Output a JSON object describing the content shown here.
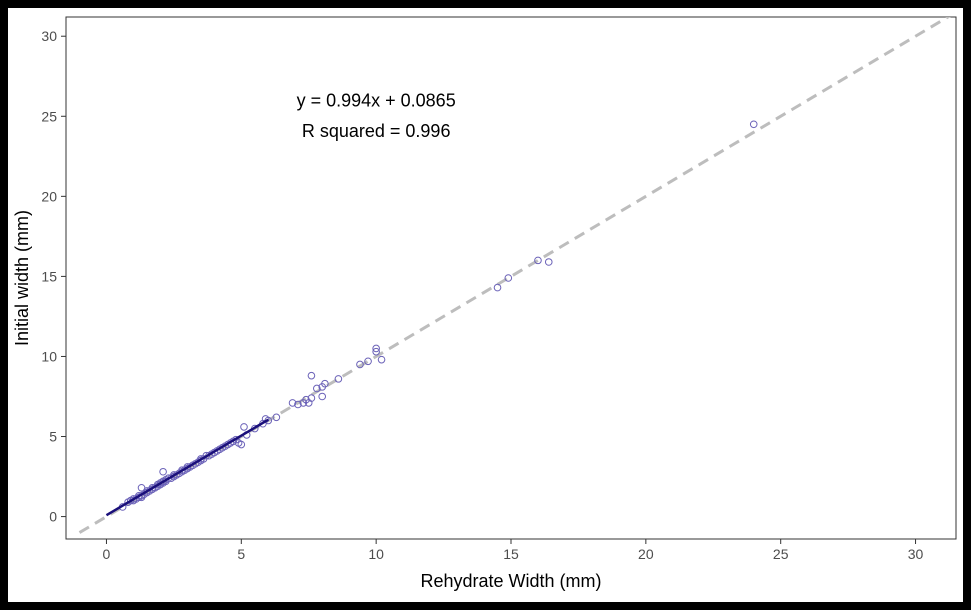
{
  "chart_data": {
    "type": "scatter",
    "title": "",
    "xlabel": "Rehydrate Width (mm)",
    "ylabel": "Initial width (mm)",
    "xlim": [
      -1.5,
      31.5
    ],
    "ylim": [
      -1.4,
      31.2
    ],
    "x_ticks": [
      0,
      5,
      10,
      15,
      20,
      25,
      30
    ],
    "y_ticks": [
      0,
      5,
      10,
      15,
      20,
      25,
      30
    ],
    "grid": false,
    "annotations": [
      "y = 0.994x + 0.0865",
      "R squared = 0.996"
    ],
    "identity_line": {
      "style": "dashed",
      "color": "#bdbdbd",
      "from": [
        -1.0,
        -1.0
      ],
      "to": [
        31.5,
        31.5
      ]
    },
    "fit_line": {
      "slope": 0.994,
      "intercept": 0.0865,
      "x_range": [
        0.0,
        6.0
      ],
      "color": "#1a0f7a"
    },
    "point_color": "#6b62b8",
    "points": {
      "x": [
        0.6,
        0.8,
        0.9,
        1.0,
        1.0,
        1.1,
        1.2,
        1.2,
        1.3,
        1.3,
        1.4,
        1.5,
        1.5,
        1.6,
        1.7,
        1.7,
        1.8,
        1.9,
        1.9,
        2.0,
        2.0,
        2.1,
        2.1,
        2.2,
        2.2,
        2.3,
        2.4,
        2.5,
        2.5,
        2.6,
        2.7,
        2.8,
        2.8,
        2.9,
        3.0,
        3.0,
        3.1,
        3.2,
        3.3,
        3.4,
        3.5,
        3.5,
        3.6,
        3.7,
        3.8,
        3.9,
        4.0,
        4.1,
        4.2,
        4.3,
        4.4,
        4.5,
        4.6,
        4.7,
        4.8,
        5.0,
        5.1,
        5.2,
        5.5,
        5.8,
        5.9,
        6.0,
        6.3,
        6.9,
        7.1,
        7.3,
        7.4,
        7.5,
        7.6,
        7.6,
        7.8,
        8.0,
        8.0,
        8.1,
        8.6,
        9.4,
        9.7,
        10.0,
        10.0,
        10.2,
        14.5,
        14.9,
        16.0,
        16.4,
        24.0,
        2.1,
        1.3,
        4.9
      ],
      "y": [
        0.6,
        0.9,
        1.0,
        1.0,
        1.1,
        1.1,
        1.2,
        1.3,
        1.8,
        1.3,
        1.4,
        1.5,
        1.6,
        1.6,
        1.7,
        1.8,
        1.8,
        1.9,
        2.0,
        2.0,
        2.1,
        2.1,
        2.2,
        2.2,
        2.3,
        2.4,
        2.4,
        2.5,
        2.6,
        2.6,
        2.7,
        2.8,
        2.9,
        2.9,
        3.0,
        3.1,
        3.1,
        3.2,
        3.3,
        3.4,
        3.5,
        3.6,
        3.6,
        3.8,
        3.8,
        3.9,
        4.0,
        4.1,
        4.2,
        4.3,
        4.4,
        4.5,
        4.6,
        4.7,
        4.8,
        4.5,
        5.6,
        5.1,
        5.5,
        5.8,
        6.1,
        6.0,
        6.2,
        7.1,
        7.0,
        7.1,
        7.3,
        7.1,
        8.8,
        7.4,
        8.0,
        8.1,
        7.5,
        8.3,
        8.6,
        9.5,
        9.7,
        10.3,
        10.5,
        9.8,
        14.3,
        14.9,
        16.0,
        15.9,
        24.5,
        2.8,
        1.2,
        4.6
      ]
    }
  }
}
